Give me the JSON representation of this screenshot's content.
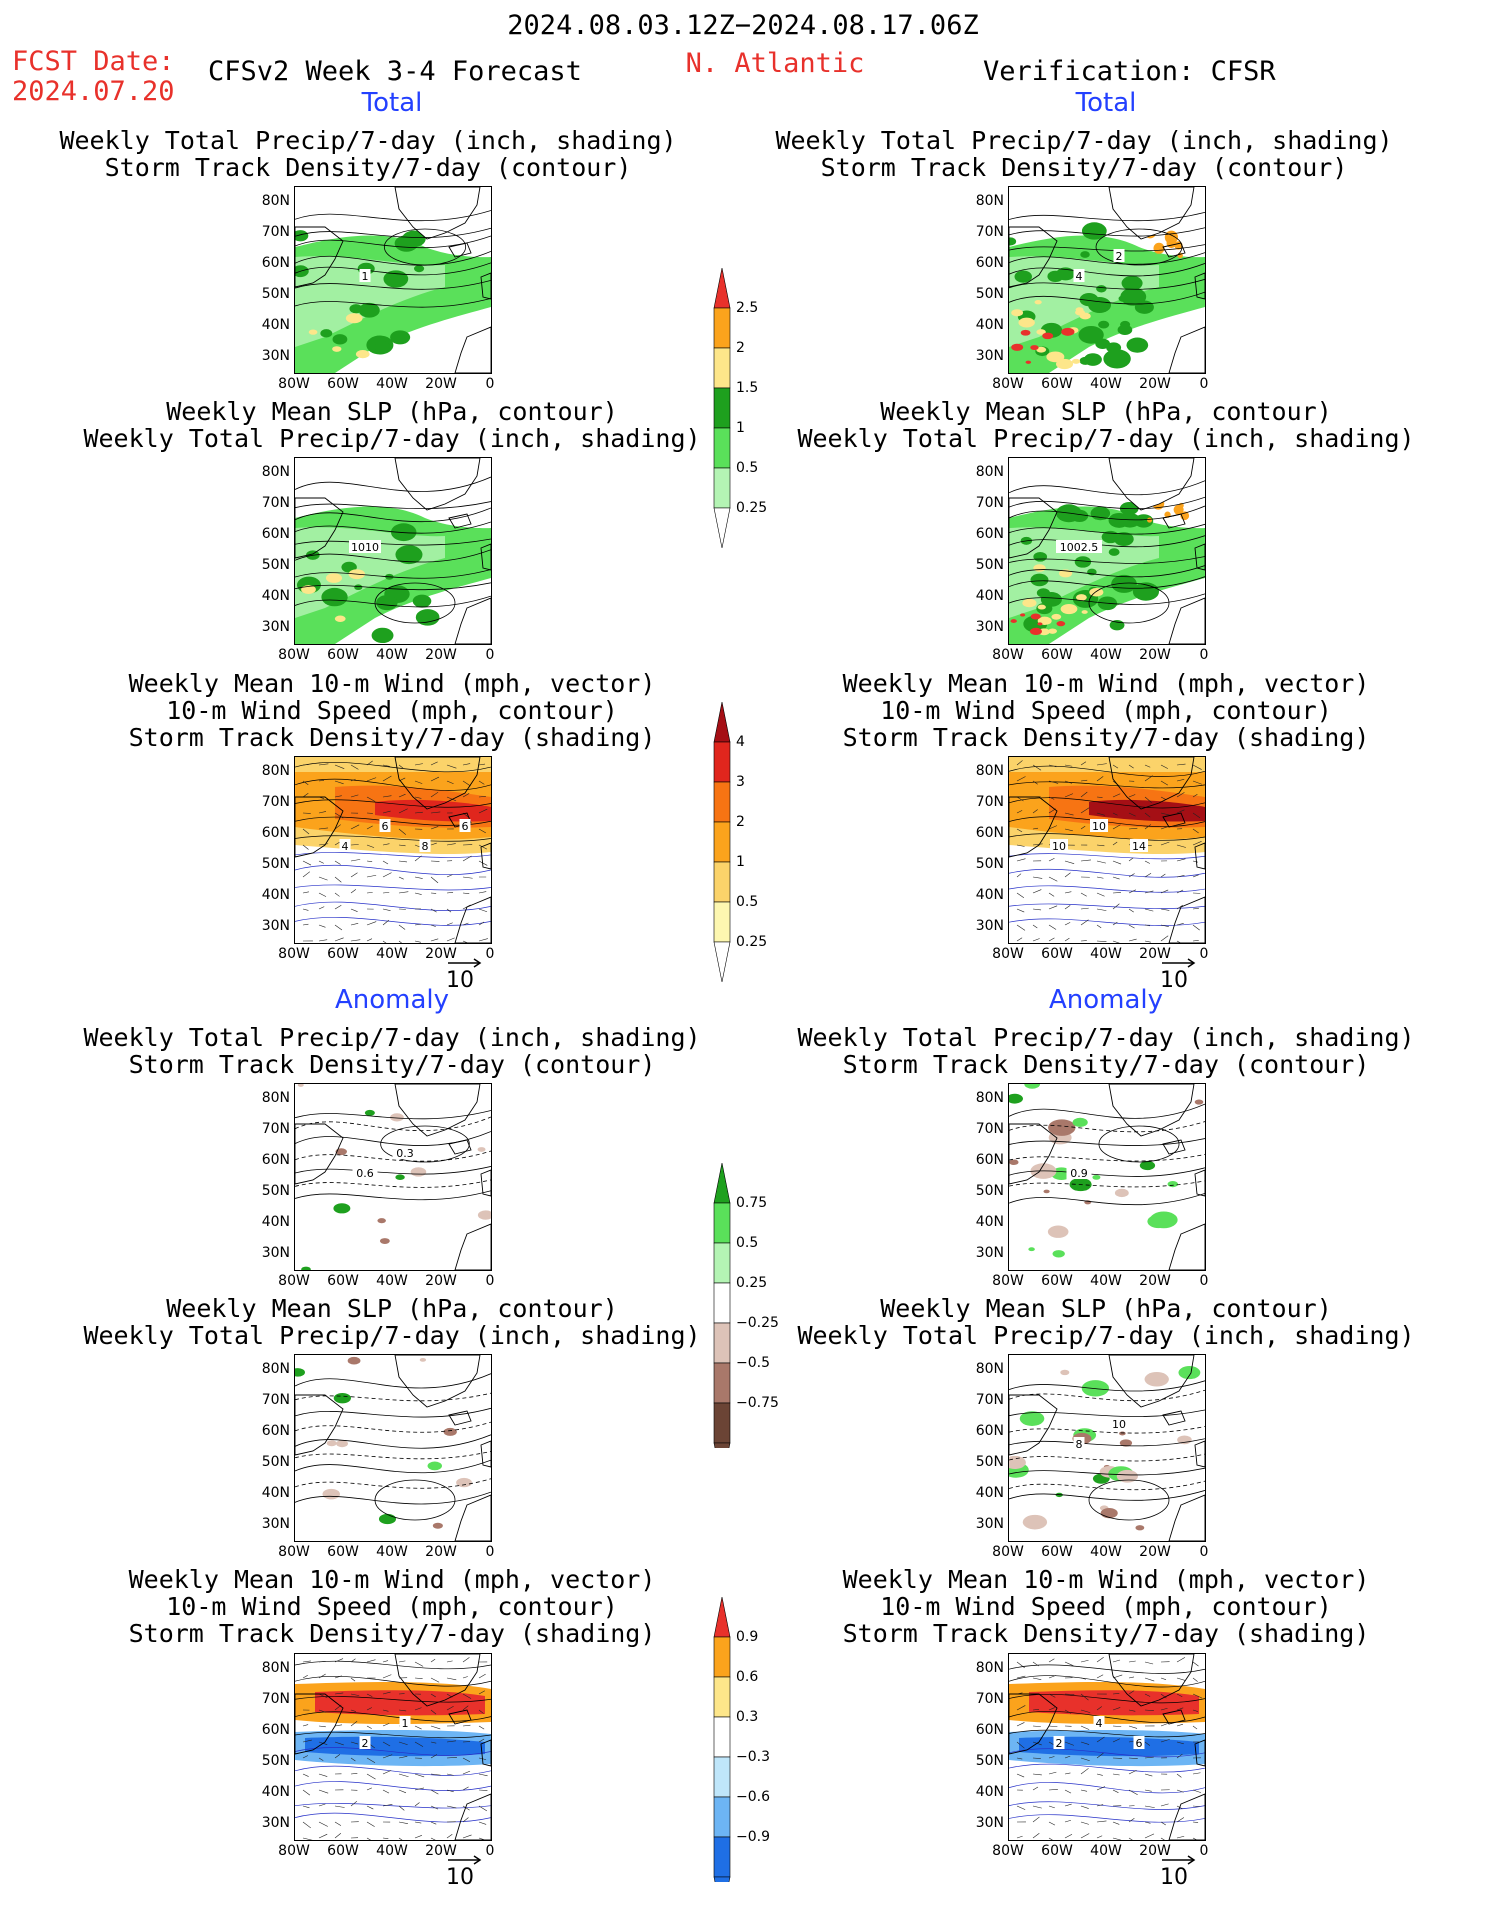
{
  "header": {
    "date_range": "2024.08.03.12Z−2024.08.17.06Z",
    "fcst_label": "FCST Date:",
    "fcst_date": "2024.07.20",
    "model": "CFSv2 Week 3-4 Forecast",
    "region": "N. Atlantic",
    "verification": "Verification: CFSR"
  },
  "sections": {
    "total": "Total",
    "anomaly": "Anomaly"
  },
  "colors": {
    "header_red": "#e8312b",
    "section_blue": "#2340ff",
    "precip_total": [
      "#b4f4b4",
      "#5ae05a",
      "#1ea01e",
      "#fde68a",
      "#fba31c",
      "#e8312b"
    ],
    "storm_total": [
      "#fdf7b0",
      "#fbd36a",
      "#fba31c",
      "#f77413",
      "#e0261d",
      "#a50f15"
    ],
    "precip_anom": [
      "#6b4435",
      "#a9786a",
      "#ddc3b8",
      "#ffffff",
      "#b4f4b4",
      "#5ae05a",
      "#1ea01e"
    ],
    "storm_anom": [
      "#1f6fe5",
      "#6db5f4",
      "#bfe6fa",
      "#ffffff",
      "#fde68a",
      "#fba31c",
      "#e8312b"
    ]
  },
  "axes": {
    "lat_labels": [
      "80N",
      "70N",
      "60N",
      "50N",
      "40N",
      "30N"
    ],
    "lon_labels": [
      "80W",
      "60W",
      "40W",
      "20W",
      "0"
    ]
  },
  "panel_titles": {
    "precip_storm": [
      "Weekly Total Precip/7-day (inch, shading)",
      "Storm Track Density/7-day (contour)"
    ],
    "slp_precip": [
      "Weekly Mean SLP (hPa, contour)",
      "Weekly Total Precip/7-day (inch, shading)"
    ],
    "wind_storm": [
      "Weekly Mean 10-m Wind (mph, vector)",
      "10-m Wind Speed (mph, contour)",
      "Storm Track Density/7-day (shading)"
    ]
  },
  "colorbars": {
    "precip_total": [
      "2.5",
      "2",
      "1.5",
      "1",
      "0.5",
      "0.25"
    ],
    "storm_total": [
      "4",
      "3",
      "2",
      "1",
      "0.5",
      "0.25"
    ],
    "precip_anom": [
      "0.75",
      "0.5",
      "0.25",
      "−0.25",
      "−0.5",
      "−0.75"
    ],
    "storm_anom": [
      "0.9",
      "0.6",
      "0.3",
      "−0.3",
      "−0.6",
      "−0.9"
    ]
  },
  "vector_ref": "10",
  "contour_labels": {
    "fc_total_precip": [
      "1"
    ],
    "fc_total_slp": [
      "1010"
    ],
    "fc_total_wind": [
      "4",
      "6",
      "8",
      "6"
    ],
    "ob_total_precip": [
      "4",
      "2"
    ],
    "ob_total_slp": [
      "1002.5"
    ],
    "ob_total_wind": [
      "10",
      "10",
      "14"
    ],
    "fc_anom_precip": [
      "0.6",
      "0.3"
    ],
    "fc_anom_slp": [],
    "fc_anom_wind": [
      "2",
      "1"
    ],
    "ob_anom_precip": [
      "0.9"
    ],
    "ob_anom_slp": [
      "8",
      "10"
    ],
    "ob_anom_wind": [
      "2",
      "4",
      "6"
    ]
  }
}
